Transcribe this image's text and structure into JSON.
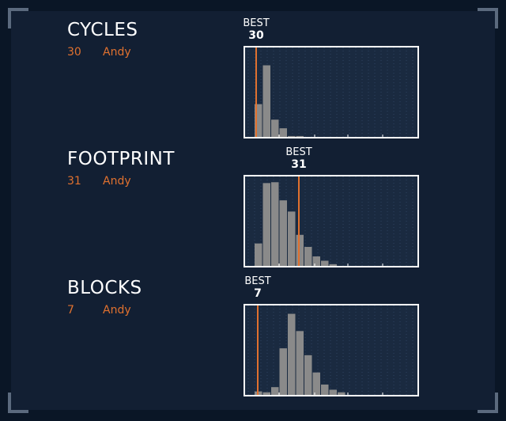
{
  "colors": {
    "background": "#0a1626",
    "panel": "#121f33",
    "accent": "#e0712f",
    "bar": "#8a8a8a",
    "chart_border": "#ffffff"
  },
  "best_caption": "BEST",
  "metrics": [
    {
      "title": "CYCLES",
      "score": "30",
      "player": "Andy",
      "best": "30"
    },
    {
      "title": "FOOTPRINT",
      "score": "31",
      "player": "Andy",
      "best": "31"
    },
    {
      "title": "BLOCKS",
      "score": "7",
      "player": "Andy",
      "best": "7"
    }
  ],
  "chart_data": [
    {
      "type": "bar",
      "title": "",
      "best_value": 30,
      "series": [
        {
          "values": [
            0.38,
            0.83,
            0.2,
            0.1,
            0.01,
            0.01,
            0,
            0,
            0,
            0,
            0,
            0
          ]
        }
      ],
      "x_bins": 12,
      "grid": true
    },
    {
      "type": "bar",
      "title": "",
      "best_value": 31,
      "series": [
        {
          "values": [
            0.26,
            0.96,
            0.97,
            0.76,
            0.63,
            0.36,
            0.22,
            0.11,
            0.06,
            0.02,
            0,
            0
          ]
        }
      ],
      "x_bins": 12,
      "grid": true
    },
    {
      "type": "bar",
      "title": "",
      "best_value": 7,
      "series": [
        {
          "values": [
            0.04,
            0.03,
            0.09,
            0.54,
            0.94,
            0.74,
            0.46,
            0.26,
            0.12,
            0.06,
            0.03,
            0
          ]
        }
      ],
      "x_bins": 12,
      "grid": true
    }
  ]
}
